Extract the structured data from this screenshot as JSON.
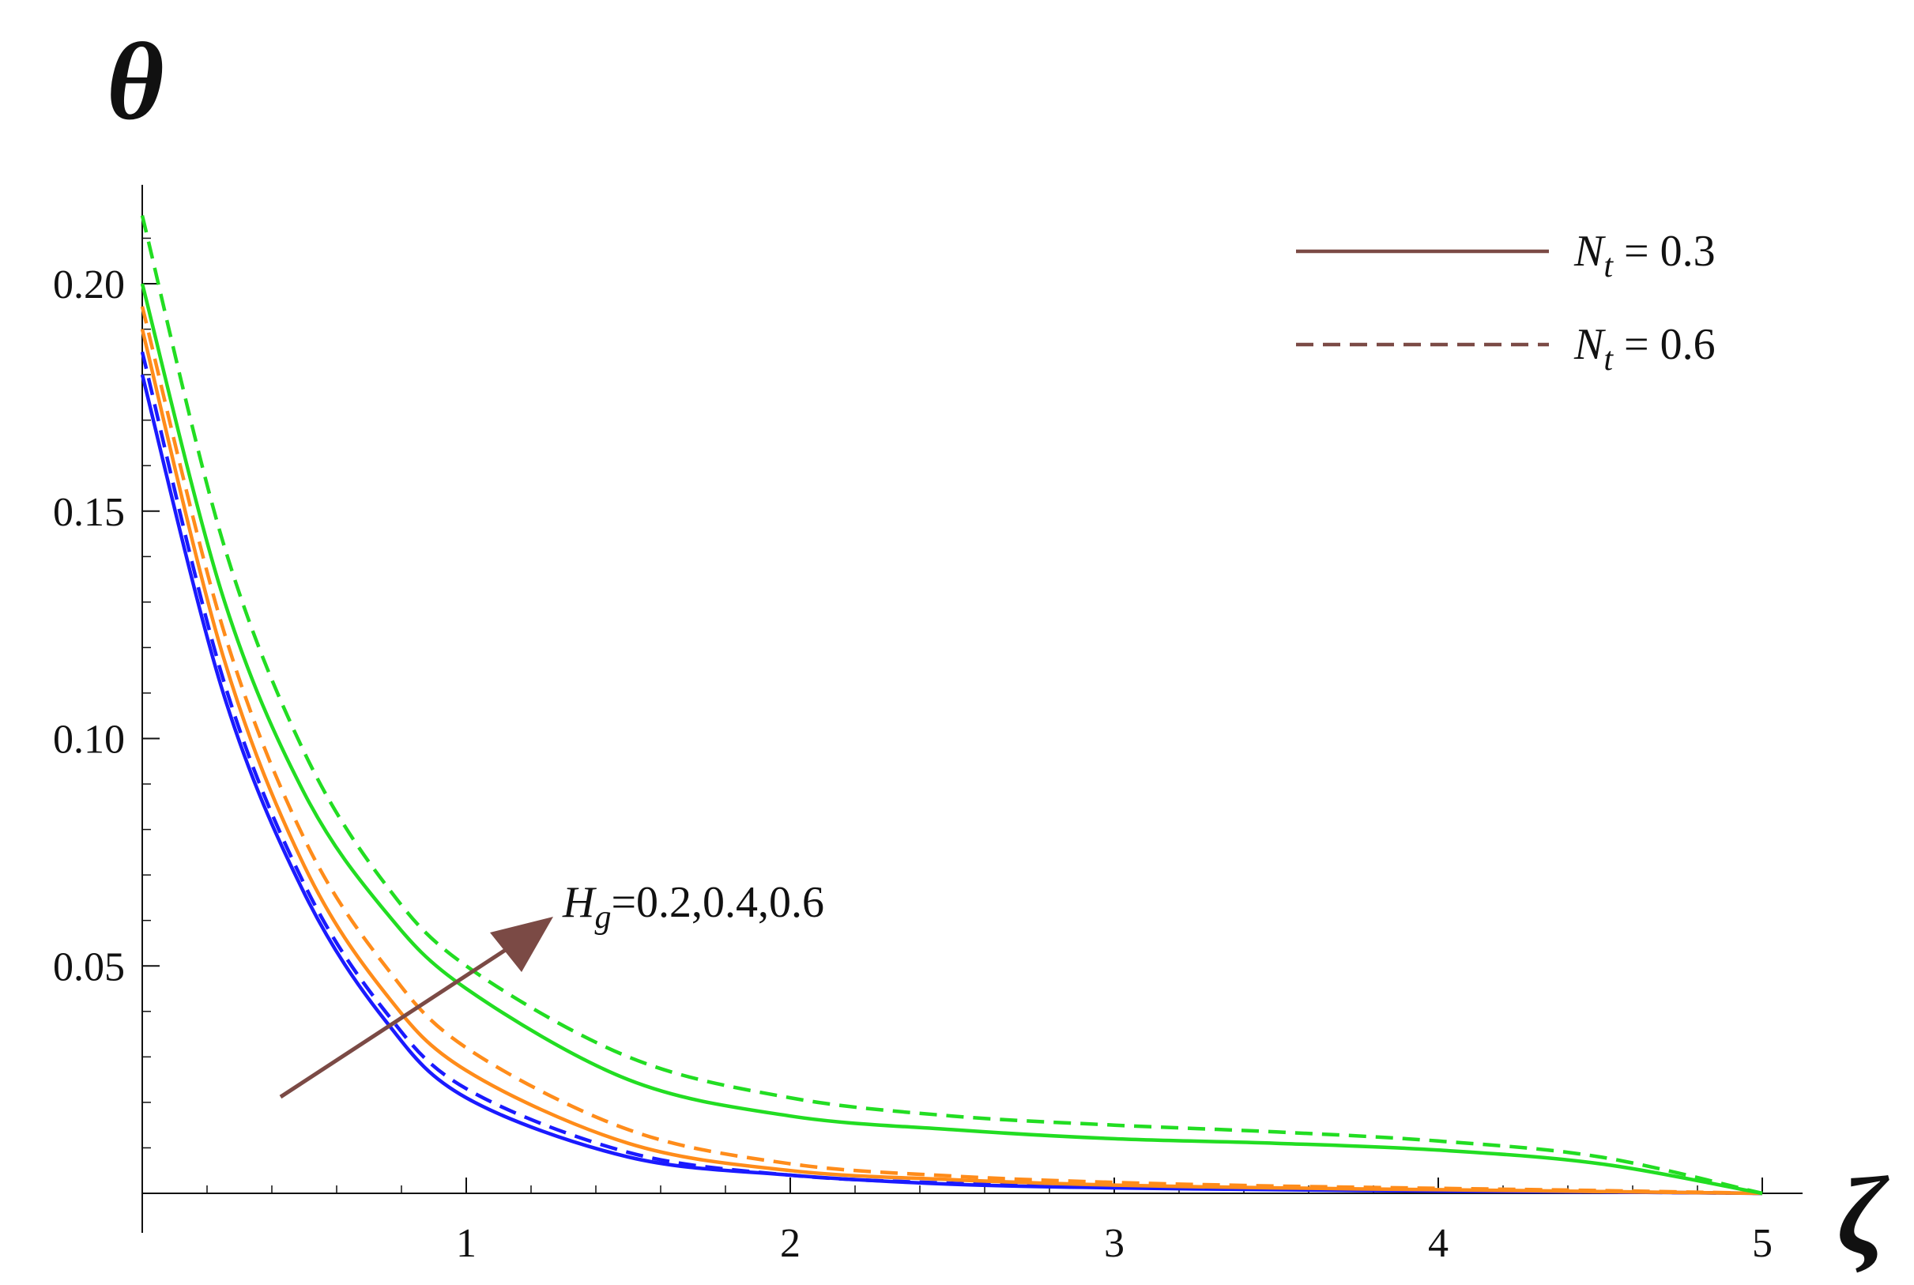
{
  "chart_data": {
    "type": "line",
    "title": "",
    "xlabel": "ζ",
    "ylabel": "θ",
    "xlim": [
      0,
      5.1
    ],
    "ylim": [
      0,
      0.22
    ],
    "x_ticks": [
      1,
      2,
      3,
      4,
      5
    ],
    "x_tick_labels": [
      "1",
      "2",
      "3",
      "4",
      "5"
    ],
    "y_ticks": [
      0.05,
      0.1,
      0.15,
      0.2
    ],
    "y_tick_labels": [
      "0.05",
      "0.10",
      "0.15",
      "0.20"
    ],
    "grid": false,
    "legend_position": "top-right",
    "legend": [
      {
        "style": "solid",
        "symbol": "N",
        "subscript": "t",
        "text": " = 0.3",
        "color": "#7b4a45"
      },
      {
        "style": "dashed",
        "symbol": "N",
        "subscript": "t",
        "text": " = 0.6",
        "color": "#7b4a45"
      }
    ],
    "annotation": {
      "symbol": "H",
      "subscript": "g",
      "text": "=0.2,0.4,0.6",
      "arrow_color": "#7b4a45"
    },
    "x": [
      0,
      0.25,
      0.5,
      0.75,
      1,
      1.5,
      2,
      2.5,
      3,
      3.5,
      4,
      4.5,
      5
    ],
    "series": [
      {
        "color": "#1a1aff",
        "style": "solid",
        "values": [
          0.18,
          0.11,
          0.066,
          0.038,
          0.021,
          0.008,
          0.004,
          0.002,
          0.0012,
          0.0008,
          0.0005,
          0.0003,
          0
        ]
      },
      {
        "color": "#1a1aff",
        "style": "dashed",
        "values": [
          0.185,
          0.113,
          0.068,
          0.04,
          0.023,
          0.009,
          0.004,
          0.0022,
          0.0013,
          0.0009,
          0.0006,
          0.0003,
          0
        ]
      },
      {
        "color": "#ff8c1a",
        "style": "solid",
        "values": [
          0.19,
          0.118,
          0.072,
          0.044,
          0.027,
          0.011,
          0.005,
          0.003,
          0.0018,
          0.0012,
          0.0008,
          0.0004,
          0
        ]
      },
      {
        "color": "#ff8c1a",
        "style": "dashed",
        "values": [
          0.195,
          0.124,
          0.078,
          0.05,
          0.032,
          0.014,
          0.0065,
          0.0038,
          0.0024,
          0.0016,
          0.0011,
          0.0006,
          0
        ]
      },
      {
        "color": "#22dd22",
        "style": "solid",
        "values": [
          0.2,
          0.131,
          0.088,
          0.062,
          0.045,
          0.025,
          0.017,
          0.014,
          0.012,
          0.011,
          0.0095,
          0.0065,
          0
        ]
      },
      {
        "color": "#22dd22",
        "style": "dashed",
        "values": [
          0.215,
          0.143,
          0.097,
          0.068,
          0.05,
          0.03,
          0.021,
          0.017,
          0.015,
          0.0135,
          0.0115,
          0.008,
          0
        ]
      }
    ]
  }
}
